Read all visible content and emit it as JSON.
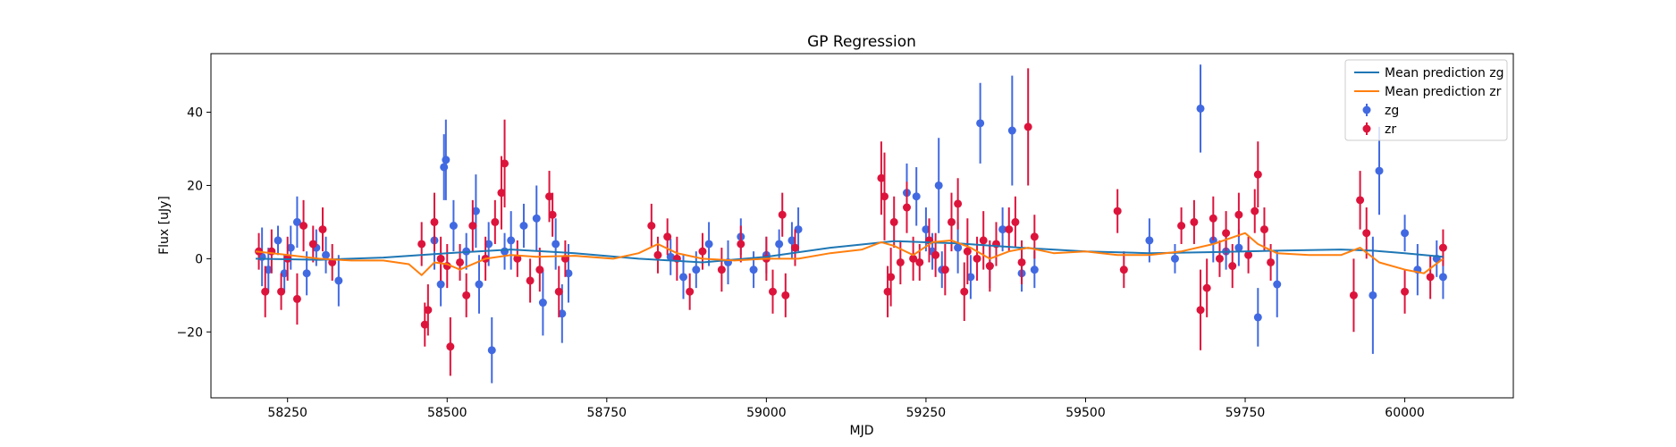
{
  "chart_data": {
    "type": "scatter",
    "title": "GP Regression",
    "xlabel": "MJD",
    "ylabel": "Flux [uJy]",
    "xlim": [
      58130,
      60170
    ],
    "ylim": [
      -38,
      56
    ],
    "xticks": [
      58250,
      58500,
      58750,
      59000,
      59250,
      59500,
      59750,
      60000
    ],
    "xtick_labels": [
      "58250",
      "58500",
      "58750",
      "59000",
      "59250",
      "59500",
      "59750",
      "60000"
    ],
    "yticks": [
      -20,
      0,
      20,
      40
    ],
    "ytick_labels": [
      "−20",
      "0",
      "20",
      "40"
    ],
    "grid": false,
    "legend_position": "upper right",
    "series": [
      {
        "name": "Mean prediction zg",
        "kind": "line",
        "color": "#1f77b4",
        "points": [
          [
            58200,
            0
          ],
          [
            58300,
            -0.3
          ],
          [
            58400,
            0.3
          ],
          [
            58500,
            1.5
          ],
          [
            58600,
            2.5
          ],
          [
            58700,
            1.5
          ],
          [
            58800,
            0
          ],
          [
            58900,
            -1
          ],
          [
            59000,
            0.5
          ],
          [
            59100,
            3
          ],
          [
            59200,
            4.8
          ],
          [
            59300,
            4.2
          ],
          [
            59400,
            3
          ],
          [
            59500,
            2
          ],
          [
            59600,
            1.5
          ],
          [
            59700,
            1.8
          ],
          [
            59800,
            2.2
          ],
          [
            59900,
            2.5
          ],
          [
            59950,
            2.2
          ],
          [
            60000,
            1.5
          ],
          [
            60060,
            0.5
          ]
        ]
      },
      {
        "name": "Mean prediction zr",
        "kind": "line",
        "color": "#ff7f0e",
        "points": [
          [
            58200,
            2
          ],
          [
            58240,
            1.2
          ],
          [
            58300,
            0
          ],
          [
            58350,
            -0.5
          ],
          [
            58400,
            -0.5
          ],
          [
            58440,
            -1.5
          ],
          [
            58460,
            -4.5
          ],
          [
            58480,
            -1
          ],
          [
            58500,
            -1.5
          ],
          [
            58520,
            -3
          ],
          [
            58560,
            0
          ],
          [
            58600,
            1
          ],
          [
            58640,
            0.5
          ],
          [
            58700,
            0.8
          ],
          [
            58760,
            0
          ],
          [
            58800,
            1.5
          ],
          [
            58830,
            4
          ],
          [
            58860,
            1.5
          ],
          [
            58900,
            0
          ],
          [
            58950,
            -0.5
          ],
          [
            59000,
            0
          ],
          [
            59050,
            0
          ],
          [
            59100,
            1.5
          ],
          [
            59150,
            2.5
          ],
          [
            59180,
            4.5
          ],
          [
            59200,
            3.5
          ],
          [
            59230,
            1
          ],
          [
            59260,
            4.5
          ],
          [
            59290,
            5
          ],
          [
            59320,
            3
          ],
          [
            59350,
            0
          ],
          [
            59380,
            2
          ],
          [
            59410,
            3
          ],
          [
            59450,
            1.5
          ],
          [
            59500,
            2
          ],
          [
            59550,
            1
          ],
          [
            59600,
            1
          ],
          [
            59650,
            2
          ],
          [
            59700,
            4
          ],
          [
            59750,
            7
          ],
          [
            59770,
            4
          ],
          [
            59800,
            1.5
          ],
          [
            59850,
            1
          ],
          [
            59900,
            1
          ],
          [
            59930,
            3
          ],
          [
            59960,
            -1
          ],
          [
            60000,
            -3
          ],
          [
            60030,
            -4
          ],
          [
            60060,
            0
          ]
        ]
      },
      {
        "name": "zg",
        "kind": "errorbar",
        "color": "#4169e1",
        "points": [
          [
            58210,
            0.5,
            8
          ],
          [
            58220,
            -3,
            6
          ],
          [
            58235,
            5,
            4
          ],
          [
            58245,
            -4,
            5
          ],
          [
            58255,
            3,
            6
          ],
          [
            58265,
            10,
            7
          ],
          [
            58280,
            -4,
            6
          ],
          [
            58295,
            3,
            5
          ],
          [
            58310,
            1,
            5
          ],
          [
            58330,
            -6,
            7
          ],
          [
            58480,
            5,
            8
          ],
          [
            58490,
            -7,
            6
          ],
          [
            58495,
            25,
            9
          ],
          [
            58498,
            27,
            11
          ],
          [
            58510,
            9,
            7
          ],
          [
            58530,
            2,
            5
          ],
          [
            58545,
            13,
            10
          ],
          [
            58550,
            -7,
            8
          ],
          [
            58565,
            4,
            6
          ],
          [
            58570,
            -25,
            9
          ],
          [
            58590,
            2,
            5
          ],
          [
            58600,
            5,
            8
          ],
          [
            58620,
            9,
            6
          ],
          [
            58640,
            11,
            9
          ],
          [
            58650,
            -12,
            9
          ],
          [
            58670,
            4,
            7
          ],
          [
            58680,
            -15,
            8
          ],
          [
            58690,
            -4,
            8
          ],
          [
            58850,
            0.5,
            5
          ],
          [
            58870,
            -5,
            6
          ],
          [
            58890,
            -3,
            5
          ],
          [
            58910,
            4,
            6
          ],
          [
            58940,
            -1,
            6
          ],
          [
            58960,
            6,
            5
          ],
          [
            58980,
            -3,
            5
          ],
          [
            59000,
            1,
            5
          ],
          [
            59020,
            4,
            4
          ],
          [
            59040,
            5,
            5
          ],
          [
            59050,
            8,
            6
          ],
          [
            59220,
            18,
            8
          ],
          [
            59235,
            17,
            8
          ],
          [
            59250,
            8,
            6
          ],
          [
            59260,
            2,
            5
          ],
          [
            59270,
            20,
            13
          ],
          [
            59275,
            -3,
            5
          ],
          [
            59300,
            3,
            7
          ],
          [
            59320,
            -5,
            6
          ],
          [
            59335,
            37,
            11
          ],
          [
            59350,
            -2,
            6
          ],
          [
            59370,
            8,
            6
          ],
          [
            59385,
            35,
            15
          ],
          [
            59400,
            -4,
            5
          ],
          [
            59420,
            -3,
            5
          ],
          [
            59600,
            5,
            6
          ],
          [
            59640,
            0,
            4
          ],
          [
            59680,
            41,
            12
          ],
          [
            59700,
            5,
            6
          ],
          [
            59720,
            2,
            5
          ],
          [
            59740,
            3,
            5
          ],
          [
            59770,
            -16,
            8
          ],
          [
            59800,
            -7,
            9
          ],
          [
            59950,
            -10,
            16
          ],
          [
            59960,
            24,
            12
          ],
          [
            60000,
            7,
            5
          ],
          [
            60020,
            -3,
            7
          ],
          [
            60050,
            0,
            5
          ],
          [
            60060,
            -5,
            6
          ]
        ]
      },
      {
        "name": "zr",
        "kind": "errorbar",
        "color": "#dc143c",
        "points": [
          [
            58205,
            2,
            5
          ],
          [
            58215,
            -9,
            7
          ],
          [
            58225,
            2,
            6
          ],
          [
            58240,
            -9,
            5
          ],
          [
            58250,
            0,
            6
          ],
          [
            58265,
            -11,
            7
          ],
          [
            58275,
            9,
            7
          ],
          [
            58290,
            4,
            5
          ],
          [
            58305,
            8,
            6
          ],
          [
            58320,
            -1,
            5
          ],
          [
            58460,
            4,
            6
          ],
          [
            58465,
            -18,
            6
          ],
          [
            58470,
            -14,
            7
          ],
          [
            58480,
            10,
            8
          ],
          [
            58490,
            0,
            6
          ],
          [
            58500,
            -2,
            6
          ],
          [
            58505,
            -24,
            8
          ],
          [
            58520,
            -1,
            5
          ],
          [
            58530,
            -10,
            6
          ],
          [
            58540,
            9,
            7
          ],
          [
            58560,
            0,
            6
          ],
          [
            58575,
            10,
            6
          ],
          [
            58585,
            18,
            10
          ],
          [
            58590,
            26,
            12
          ],
          [
            58610,
            0,
            5
          ],
          [
            58630,
            -6,
            6
          ],
          [
            58645,
            -3,
            6
          ],
          [
            58660,
            17,
            7
          ],
          [
            58665,
            12,
            6
          ],
          [
            58675,
            -9,
            7
          ],
          [
            58685,
            0,
            5
          ],
          [
            58820,
            9,
            6
          ],
          [
            58830,
            1,
            5
          ],
          [
            58845,
            6,
            5
          ],
          [
            58860,
            0,
            6
          ],
          [
            58880,
            -9,
            5
          ],
          [
            58900,
            2,
            5
          ],
          [
            58930,
            -3,
            6
          ],
          [
            58960,
            4,
            5
          ],
          [
            59000,
            0,
            6
          ],
          [
            59010,
            -9,
            6
          ],
          [
            59025,
            12,
            6
          ],
          [
            59030,
            -10,
            6
          ],
          [
            59045,
            3,
            5
          ],
          [
            59180,
            22,
            10
          ],
          [
            59185,
            17,
            12
          ],
          [
            59190,
            -9,
            7
          ],
          [
            59195,
            -5,
            8
          ],
          [
            59200,
            10,
            7
          ],
          [
            59210,
            -1,
            6
          ],
          [
            59220,
            14,
            7
          ],
          [
            59230,
            0,
            6
          ],
          [
            59240,
            -1,
            5
          ],
          [
            59255,
            5,
            6
          ],
          [
            59265,
            1,
            6
          ],
          [
            59280,
            -3,
            7
          ],
          [
            59290,
            10,
            8
          ],
          [
            59300,
            15,
            7
          ],
          [
            59310,
            -9,
            8
          ],
          [
            59315,
            2,
            9
          ],
          [
            59330,
            0,
            6
          ],
          [
            59340,
            5,
            8
          ],
          [
            59350,
            -2,
            7
          ],
          [
            59360,
            4,
            6
          ],
          [
            59380,
            8,
            6
          ],
          [
            59390,
            10,
            7
          ],
          [
            59400,
            -1,
            6
          ],
          [
            59410,
            36,
            16
          ],
          [
            59420,
            6,
            6
          ],
          [
            59550,
            13,
            6
          ],
          [
            59560,
            -3,
            5
          ],
          [
            59650,
            9,
            5
          ],
          [
            59670,
            10,
            6
          ],
          [
            59680,
            -14,
            11
          ],
          [
            59690,
            -8,
            8
          ],
          [
            59700,
            11,
            6
          ],
          [
            59710,
            0,
            5
          ],
          [
            59720,
            7,
            6
          ],
          [
            59730,
            -2,
            6
          ],
          [
            59740,
            12,
            6
          ],
          [
            59755,
            1,
            5
          ],
          [
            59765,
            13,
            6
          ],
          [
            59770,
            23,
            9
          ],
          [
            59780,
            8,
            6
          ],
          [
            59790,
            -1,
            5
          ],
          [
            59920,
            -10,
            10
          ],
          [
            59930,
            16,
            8
          ],
          [
            59940,
            7,
            7
          ],
          [
            60000,
            -9,
            6
          ],
          [
            60040,
            -5,
            6
          ],
          [
            60060,
            3,
            5
          ]
        ]
      }
    ],
    "legend": [
      {
        "label": "Mean prediction zg",
        "kind": "line",
        "color": "#1f77b4"
      },
      {
        "label": "Mean prediction zr",
        "kind": "line",
        "color": "#ff7f0e"
      },
      {
        "label": "zg",
        "kind": "marker",
        "color": "#4169e1"
      },
      {
        "label": "zr",
        "kind": "marker",
        "color": "#dc143c"
      }
    ]
  }
}
